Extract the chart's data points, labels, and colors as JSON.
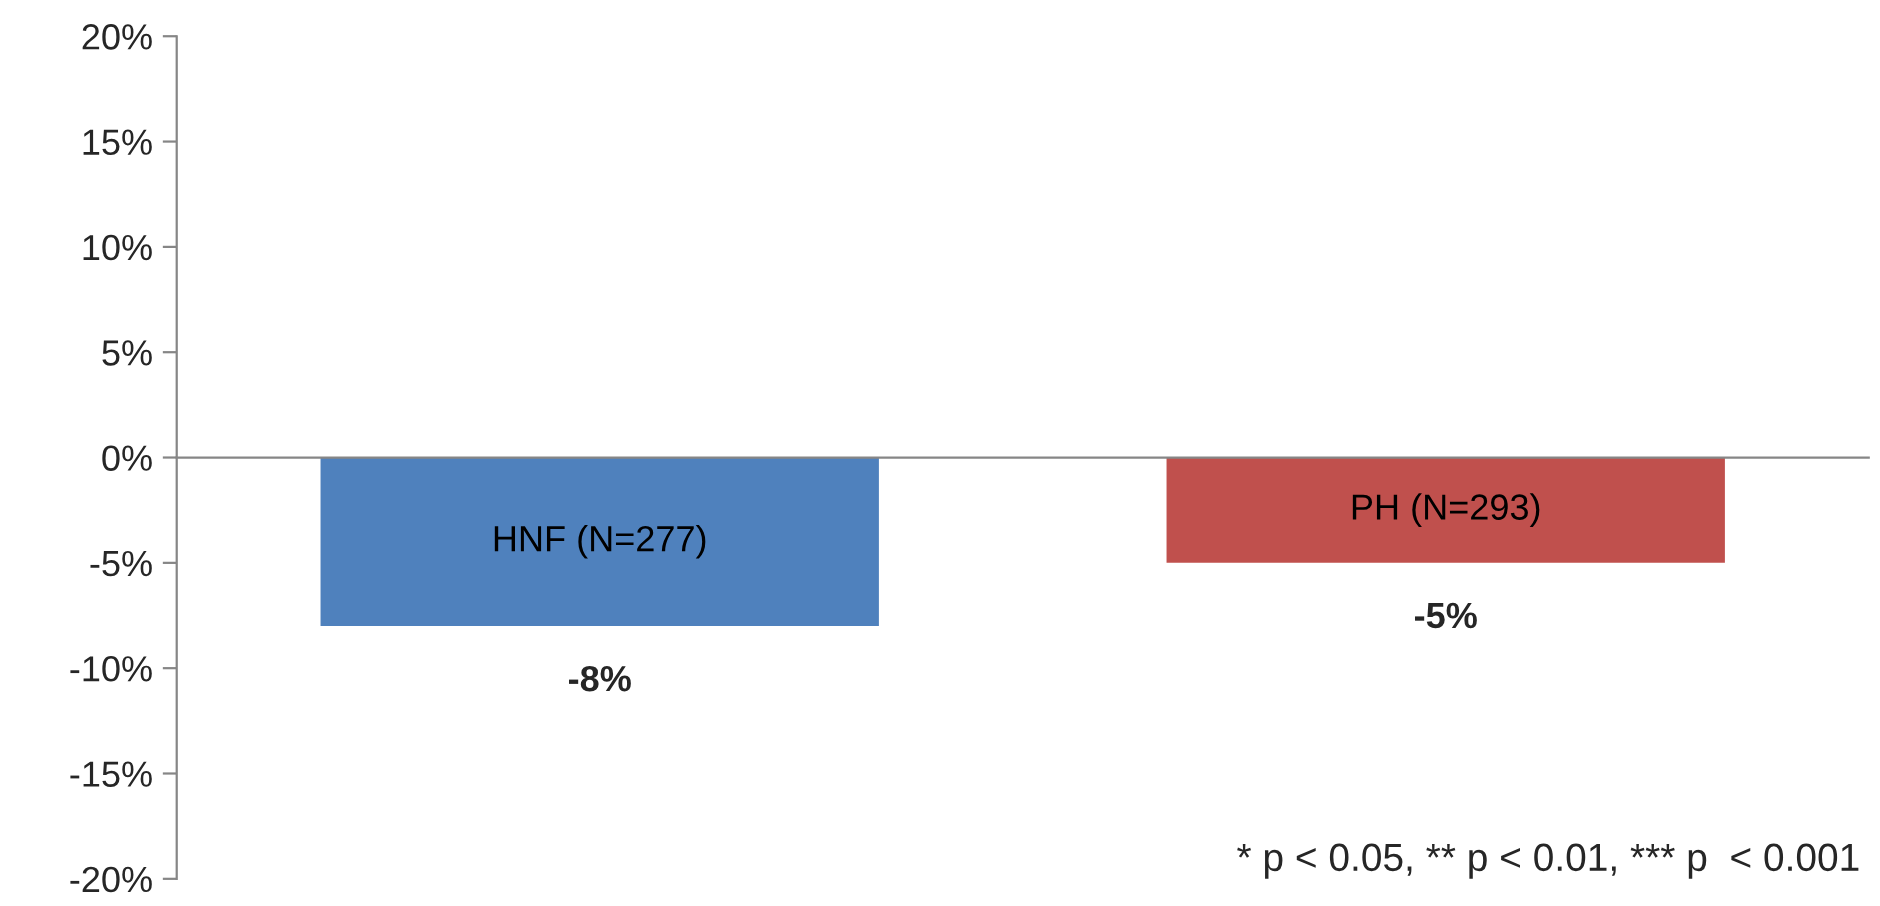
{
  "chart_data": {
    "type": "bar",
    "categories": [
      "HNF (N=277)",
      "PH (N=293)"
    ],
    "values": [
      -8,
      -5
    ],
    "colors": [
      "#4f81bd",
      "#c0504d"
    ],
    "value_labels": [
      "-8%",
      "-5%"
    ],
    "ylim": [
      -20,
      20
    ],
    "yticks": [
      {
        "value": -20,
        "label": "-20%"
      },
      {
        "value": -15,
        "label": "-15%"
      },
      {
        "value": -10,
        "label": "-10%"
      },
      {
        "value": -5,
        "label": "-5%"
      },
      {
        "value": 0,
        "label": "0%"
      },
      {
        "value": 5,
        "label": "5%"
      },
      {
        "value": 10,
        "label": "10%"
      },
      {
        "value": 15,
        "label": "15%"
      },
      {
        "value": 20,
        "label": "20%"
      }
    ],
    "legend": false,
    "annotations": [
      "* p < 0.05, ** p < 0.01, *** p  < 0.001"
    ]
  }
}
